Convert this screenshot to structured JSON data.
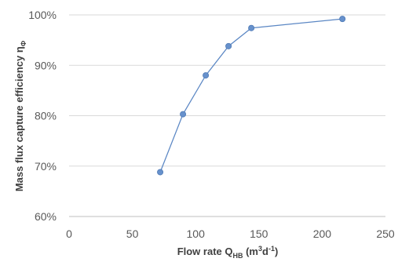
{
  "chart_data": {
    "type": "line",
    "title": "",
    "xlabel": "Flow rate Q_HB (m³d⁻¹)",
    "xlabel_parts": {
      "main": "Flow rate Q",
      "sub": "HB",
      "unit_pre": " (m",
      "unit_sup1": "3",
      "unit_mid": "d",
      "unit_sup2": "-1",
      "unit_post": ")"
    },
    "ylabel": "Mass flux capture efficiency η_Φ",
    "ylabel_parts": {
      "main": "Mass flux capture efficiency η",
      "sub": "Φ"
    },
    "xlim": [
      0,
      250
    ],
    "ylim": [
      0.6,
      1.0
    ],
    "x_ticks": [
      0,
      50,
      100,
      150,
      200,
      250
    ],
    "x_tick_labels": [
      "0",
      "50",
      "100",
      "150",
      "200",
      "250"
    ],
    "y_ticks": [
      0.6,
      0.7,
      0.8,
      0.9,
      1.0
    ],
    "y_tick_labels": [
      "60%",
      "70%",
      "80%",
      "90%",
      "100%"
    ],
    "grid": "horizontal",
    "colors": {
      "series": "#5b87c4",
      "marker": "#6791cc",
      "grid": "#d9d9d9",
      "axis": "#bfbfbf"
    },
    "series": [
      {
        "x": [
          72,
          90,
          108,
          126,
          144,
          216
        ],
        "y": [
          0.688,
          0.803,
          0.88,
          0.938,
          0.974,
          0.992
        ]
      }
    ]
  }
}
